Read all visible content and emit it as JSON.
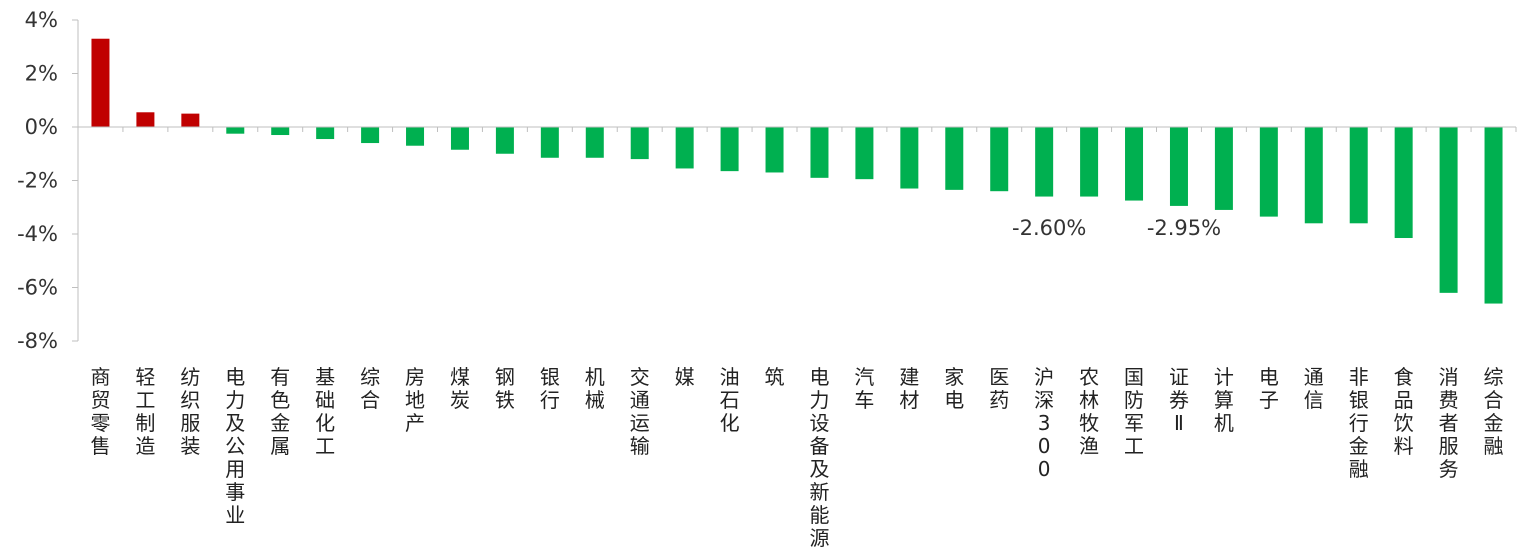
{
  "chart_data": {
    "type": "bar",
    "title": "",
    "xlabel": "",
    "ylabel": "",
    "ylim": [
      -8,
      4
    ],
    "y_ticks": [
      4,
      2,
      0,
      -2,
      -4,
      -6,
      -8
    ],
    "y_tick_labels": [
      "4%",
      "2%",
      "0%",
      "-2%",
      "-4%",
      "-6%",
      "-8%"
    ],
    "categories": [
      "商贸零售",
      "轻工制造",
      "纺织服装",
      "电力及公用事业",
      "有色金属",
      "基础化工",
      "综合",
      "房地产",
      "煤炭",
      "钢铁",
      "银行",
      "机械",
      "交通运输",
      "媒",
      "油石化",
      "筑",
      "电力设备及新能源",
      "汽车",
      "建材",
      "家电",
      "医药",
      "沪深300",
      "农林牧渔",
      "国防军工",
      "证券Ⅱ",
      "计算机",
      "电子",
      "通信",
      "非银行金融",
      "食品饮料",
      "消费者服务",
      "综合金融"
    ],
    "values": [
      3.3,
      0.55,
      0.5,
      -0.25,
      -0.3,
      -0.45,
      -0.6,
      -0.7,
      -0.85,
      -1.0,
      -1.15,
      -1.15,
      -1.2,
      -1.55,
      -1.65,
      -1.7,
      -1.9,
      -1.95,
      -2.3,
      -2.35,
      -2.4,
      -2.6,
      -2.6,
      -2.75,
      -2.95,
      -3.1,
      -3.35,
      -3.6,
      -3.6,
      -4.15,
      -6.2,
      -6.6
    ],
    "data_labels": [
      {
        "index": 21,
        "text": "-2.60%"
      },
      {
        "index": 24,
        "text": "-2.95%"
      }
    ],
    "grid": false,
    "legend": "none",
    "colors": {
      "positive": "#C00000",
      "negative": "#00B050",
      "axis": "#BFBFBF",
      "text": "#333333"
    }
  }
}
